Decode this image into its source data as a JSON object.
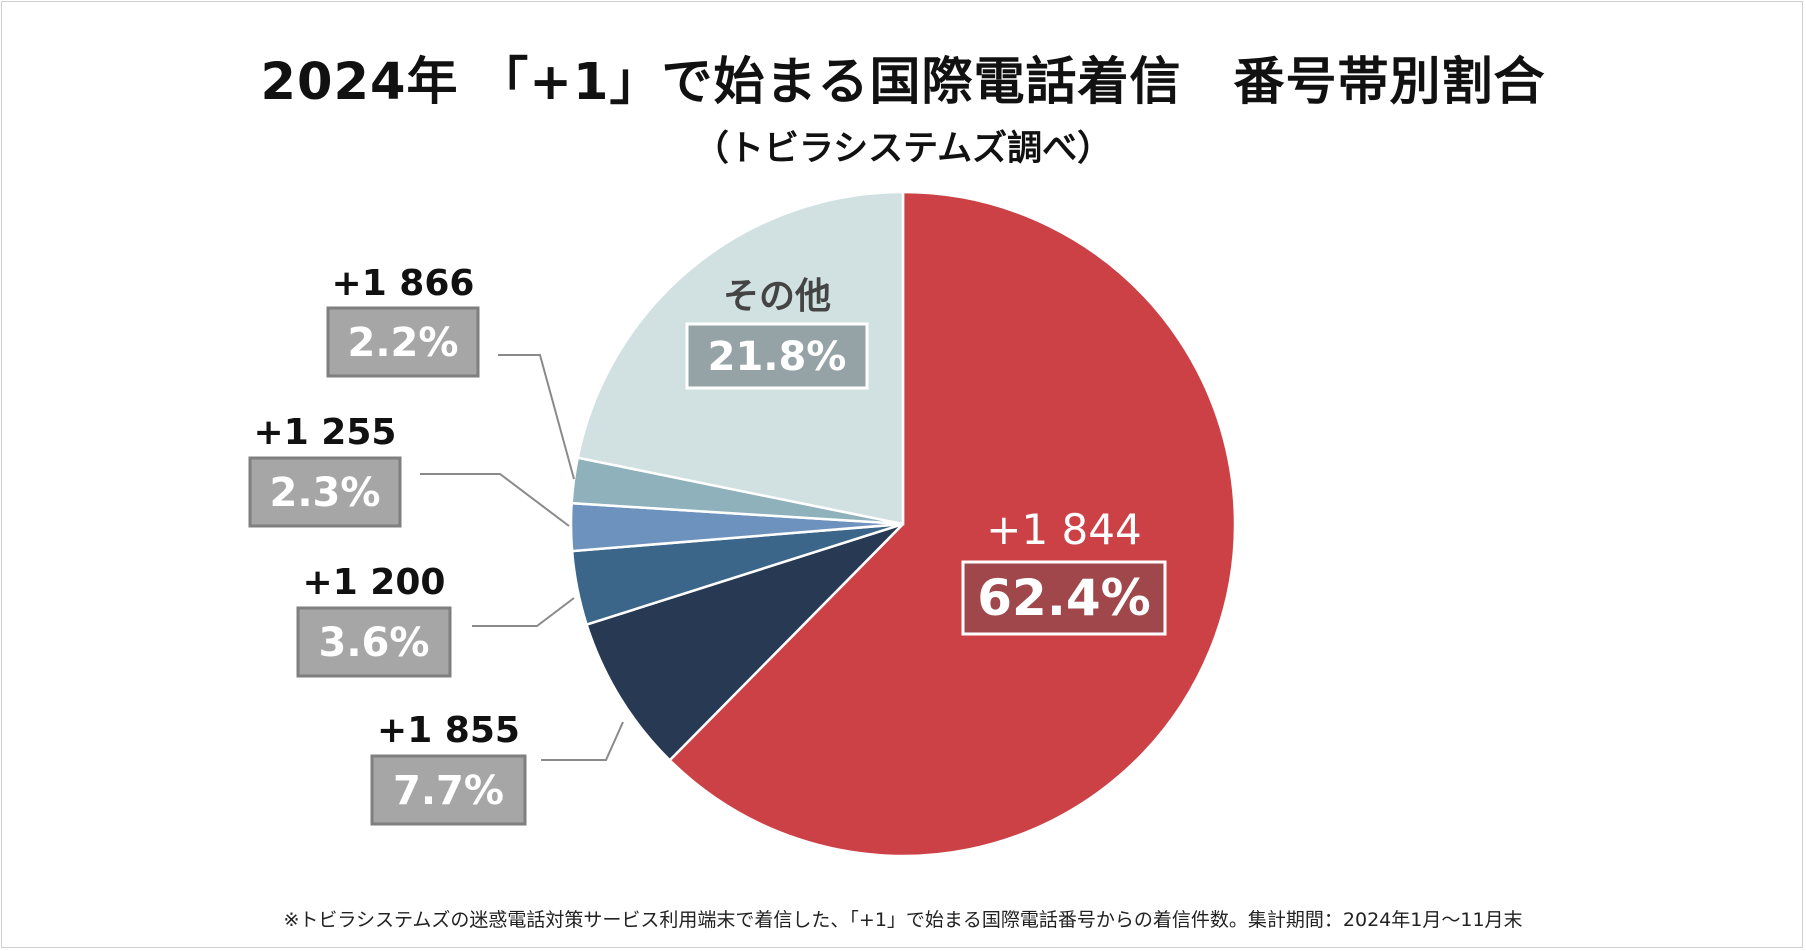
{
  "title": "2024年 「+1」で始まる国際電話着信　番号帯別割合",
  "subtitle": "（トビラシステムズ調べ）",
  "footnote": "※トビラシステムズの迷惑電話対策サービス利用端末で着信した、「+1」で始まる国際電話番号からの着信件数。集計期間：2024年1月～11月末",
  "chart_data": {
    "type": "pie",
    "slices": [
      {
        "label": "+1 844",
        "value": 62.4,
        "display": "62.4%",
        "color": "#cc4146",
        "box_color": "#a0474b"
      },
      {
        "label": "+1 855",
        "value": 7.7,
        "display": "7.7%",
        "color": "#283953",
        "box_color": "#a6a6a6"
      },
      {
        "label": "+1 200",
        "value": 3.6,
        "display": "3.6%",
        "color": "#3b6689",
        "box_color": "#a6a6a6"
      },
      {
        "label": "+1 255",
        "value": 2.3,
        "display": "2.3%",
        "color": "#6c92bd",
        "box_color": "#a6a6a6"
      },
      {
        "label": "+1 866",
        "value": 2.2,
        "display": "2.2%",
        "color": "#8fb1bb",
        "box_color": "#a6a6a6"
      },
      {
        "label": "その他",
        "value": 21.8,
        "display": "21.8%",
        "color": "#d1e1e2",
        "box_color": "#96a3a6"
      }
    ]
  }
}
